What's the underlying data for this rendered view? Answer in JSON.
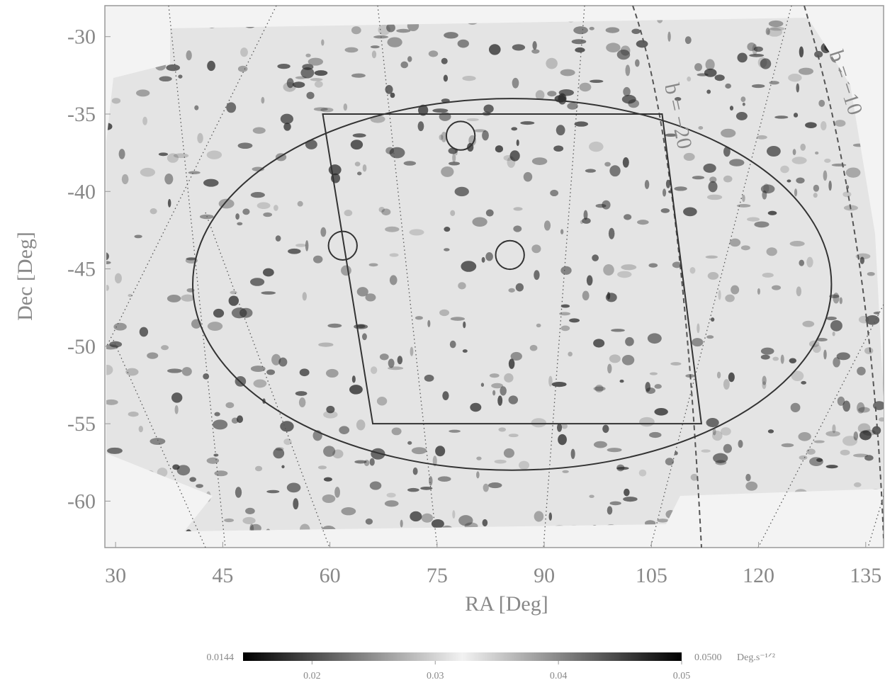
{
  "chart_data": {
    "type": "sky-map",
    "xlabel": "RA [Deg]",
    "ylabel": "Dec [Deg]",
    "xlim": [
      28.5,
      137.5
    ],
    "ylim": [
      -63,
      -28
    ],
    "xticks": [
      30,
      45,
      60,
      75,
      90,
      105,
      120,
      135
    ],
    "yticks": [
      -30,
      -35,
      -40,
      -45,
      -50,
      -55,
      -60
    ],
    "annotations": [
      "b = −20",
      "b = −10"
    ],
    "regions": {
      "ellipse": {
        "center": [
          85.5,
          -46
        ],
        "radii": [
          44.7,
          12
        ]
      },
      "box": [
        [
          59,
          -35
        ],
        [
          106.5,
          -35
        ],
        [
          112,
          -55
        ],
        [
          66,
          -55
        ]
      ],
      "circles": [
        {
          "center": [
            78.3,
            -36.4
          ],
          "radius": 2
        },
        {
          "center": [
            61.8,
            -43.5
          ],
          "radius": 2
        },
        {
          "center": [
            85.2,
            -44.1
          ],
          "radius": 2
        }
      ]
    },
    "colorbar": {
      "clim": [
        0.0144,
        0.05
      ],
      "min_label": "0.0144",
      "max_label": "0.0500",
      "unit": "Deg.s⁻¹ᐟ²",
      "ticks": [
        0.02,
        0.03,
        0.04,
        0.05
      ],
      "colors": [
        "#000000",
        "#f2f2f2",
        "#000000"
      ]
    }
  }
}
